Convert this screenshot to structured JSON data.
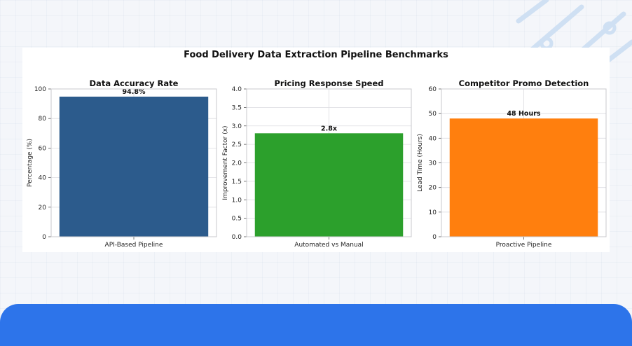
{
  "suptitle": "Food Delivery Data Extraction Pipeline Benchmarks",
  "chart_data": [
    {
      "type": "bar",
      "title": "Data Accuracy Rate",
      "ylabel": "Percentage (%)",
      "xlabel": "",
      "categories": [
        "API-Based Pipeline"
      ],
      "values": [
        94.8
      ],
      "data_labels": [
        "94.8%"
      ],
      "ylim": [
        0,
        100
      ],
      "yticks": [
        0,
        20,
        40,
        60,
        80,
        100
      ],
      "ytick_labels": [
        "0",
        "20",
        "40",
        "60",
        "80",
        "100"
      ],
      "color": "#2c5b8c",
      "grid": true
    },
    {
      "type": "bar",
      "title": "Pricing Response Speed",
      "ylabel": "Improvement Factor (x)",
      "xlabel": "",
      "categories": [
        "Automated vs Manual"
      ],
      "values": [
        2.8
      ],
      "data_labels": [
        "2.8x"
      ],
      "ylim": [
        0,
        4
      ],
      "yticks": [
        0,
        0.5,
        1,
        1.5,
        2,
        2.5,
        3,
        3.5,
        4
      ],
      "ytick_labels": [
        "0.0",
        "0.5",
        "1.0",
        "1.5",
        "2.0",
        "2.5",
        "3.0",
        "3.5",
        "4.0"
      ],
      "color": "#2ca02c",
      "grid": true
    },
    {
      "type": "bar",
      "title": "Competitor Promo Detection",
      "ylabel": "Lead Time (Hours)",
      "xlabel": "",
      "categories": [
        "Proactive Pipeline"
      ],
      "values": [
        48
      ],
      "data_labels": [
        "48 Hours"
      ],
      "ylim": [
        0,
        60
      ],
      "yticks": [
        0,
        10,
        20,
        30,
        40,
        50,
        60
      ],
      "ytick_labels": [
        "0",
        "10",
        "20",
        "30",
        "40",
        "50",
        "60"
      ],
      "color": "#ff7f0e",
      "grid": true
    }
  ]
}
